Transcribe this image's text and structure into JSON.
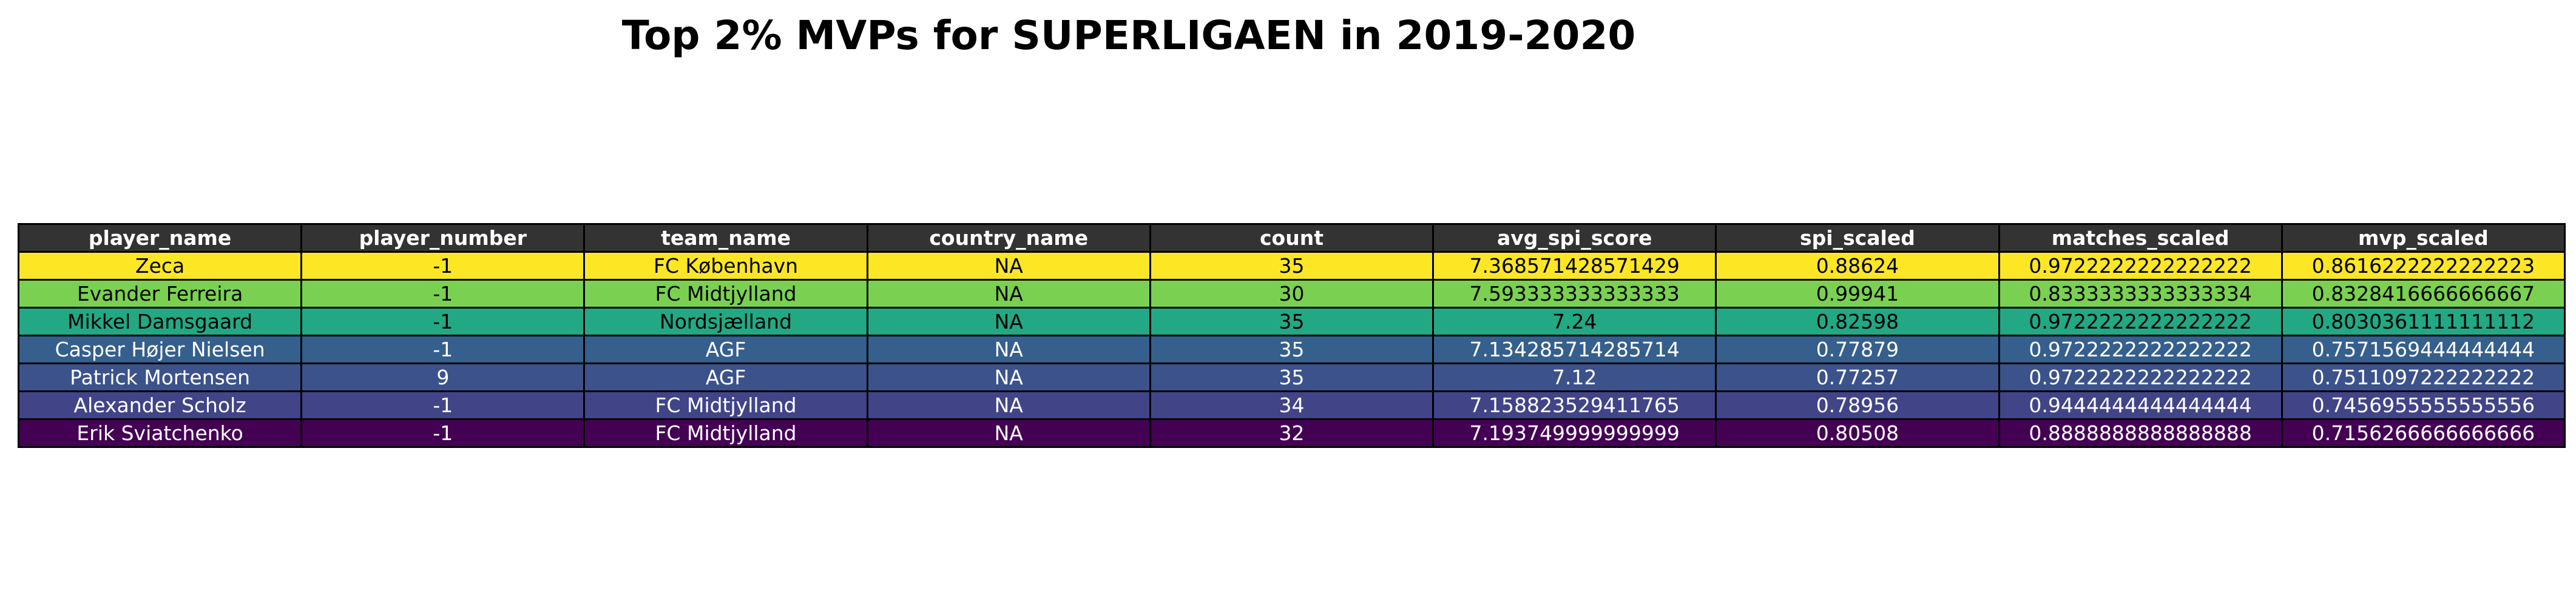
{
  "title": "Top 2% MVPs for SUPERLIGAEN in 2019-2020",
  "chart_data": {
    "type": "table",
    "title": "Top 2% MVPs for SUPERLIGAEN in 2019-2020",
    "columns": [
      "player_name",
      "player_number",
      "team_name",
      "country_name",
      "count",
      "avg_spi_score",
      "spi_scaled",
      "matches_scaled",
      "mvp_scaled"
    ],
    "rows": [
      [
        "Zeca",
        "-1",
        "FC København",
        "NA",
        "35",
        "7.368571428571429",
        "0.88624",
        "0.9722222222222222",
        "0.8616222222222223"
      ],
      [
        "Evander Ferreira",
        "-1",
        "FC Midtjylland",
        "NA",
        "30",
        "7.593333333333333",
        "0.99941",
        "0.8333333333333334",
        "0.8328416666666667"
      ],
      [
        "Mikkel Damsgaard",
        "-1",
        "Nordsjælland",
        "NA",
        "35",
        "7.24",
        "0.82598",
        "0.9722222222222222",
        "0.8030361111111112"
      ],
      [
        "Casper Højer Nielsen",
        "-1",
        "AGF",
        "NA",
        "35",
        "7.134285714285714",
        "0.77879",
        "0.9722222222222222",
        "0.7571569444444444"
      ],
      [
        "Patrick Mortensen",
        "9",
        "AGF",
        "NA",
        "35",
        "7.12",
        "0.77257",
        "0.9722222222222222",
        "0.7511097222222222"
      ],
      [
        "Alexander Scholz",
        "-1",
        "FC Midtjylland",
        "NA",
        "34",
        "7.158823529411765",
        "0.78956",
        "0.9444444444444444",
        "0.7456955555555556"
      ],
      [
        "Erik Sviatchenko",
        "-1",
        "FC Midtjylland",
        "NA",
        "32",
        "7.193749999999999",
        "0.80508",
        "0.8888888888888888",
        "0.7156266666666666"
      ]
    ],
    "row_colors": [
      "#fde725",
      "#7ad151",
      "#22a884",
      "#355f8d",
      "#3b528b",
      "#414487",
      "#440154"
    ],
    "row_text_colors": [
      "#000000",
      "#000000",
      "#000000",
      "#ffffff",
      "#ffffff",
      "#ffffff",
      "#ffffff"
    ],
    "header_color": "#333333",
    "header_text_color": "#ffffff"
  }
}
